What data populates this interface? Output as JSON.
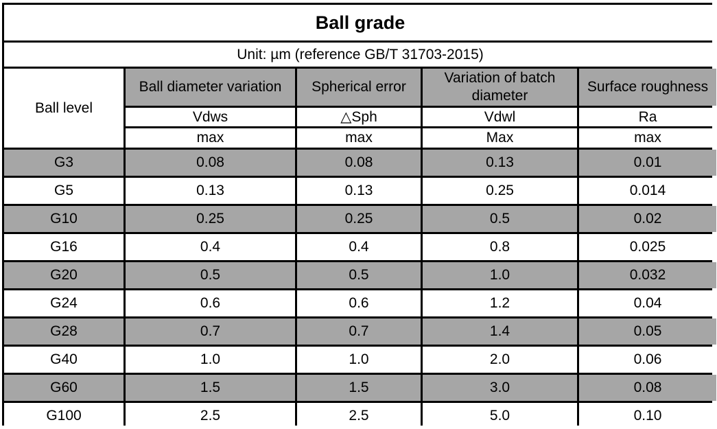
{
  "title": "Ball grade",
  "unit": "Unit: µm (reference GB/T 31703-2015)",
  "row_header": "Ball level",
  "columns": [
    {
      "name": "Ball diameter variation",
      "symbol": "Vdws",
      "limit": "max"
    },
    {
      "name": "Spherical error",
      "symbol": "△Sph",
      "limit": "max"
    },
    {
      "name": "Variation of batch diameter",
      "symbol": "Vdwl",
      "limit": "Max"
    },
    {
      "name": "Surface roughness",
      "symbol": "Ra",
      "limit": "max"
    }
  ],
  "rows": [
    [
      "G3",
      "0.08",
      "0.08",
      "0.13",
      "0.01"
    ],
    [
      "G5",
      "0.13",
      "0.13",
      "0.25",
      "0.014"
    ],
    [
      "G10",
      "0.25",
      "0.25",
      "0.5",
      "0.02"
    ],
    [
      "G16",
      "0.4",
      "0.4",
      "0.8",
      "0.025"
    ],
    [
      "G20",
      "0.5",
      "0.5",
      "1.0",
      "0.032"
    ],
    [
      "G24",
      "0.6",
      "0.6",
      "1.2",
      "0.04"
    ],
    [
      "G28",
      "0.7",
      "0.7",
      "1.4",
      "0.05"
    ],
    [
      "G40",
      "1.0",
      "1.0",
      "2.0",
      "0.06"
    ],
    [
      "G60",
      "1.5",
      "1.5",
      "3.0",
      "0.08"
    ],
    [
      "G100",
      "2.5",
      "2.5",
      "5.0",
      "0.10"
    ]
  ],
  "colors": {
    "shaded_row": "#a6a6a6",
    "grid": "#000000",
    "background": "#ffffff"
  }
}
